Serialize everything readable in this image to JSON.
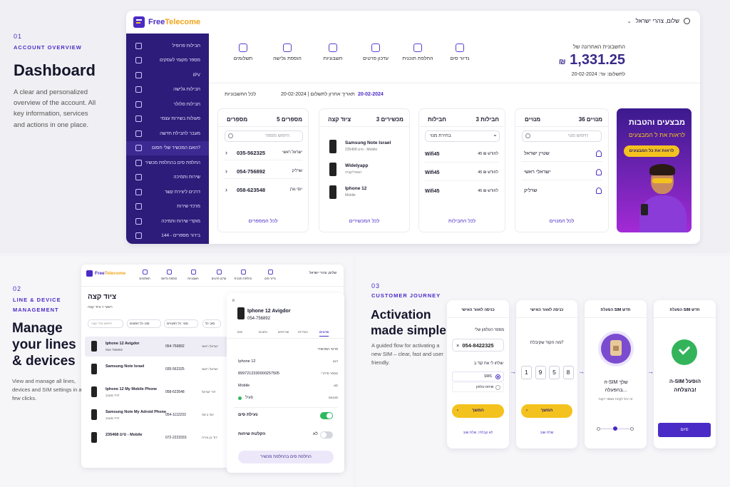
{
  "s1": {
    "num": "01",
    "label": "ACCOUNT OVERVIEW",
    "title": "Dashboard",
    "desc": "A clear and personalized overview of the account. All key information, services and actions in one place."
  },
  "s2": {
    "num": "02",
    "label": "LINE & DEVICE MANAGEMENT",
    "title": "Manage your lines & devices",
    "desc": "View and manage all lines, devices and SIM settings in a few clicks."
  },
  "s3": {
    "num": "03",
    "label": "CUSTOMER JOURNEY",
    "title": "Activation made simple",
    "desc": "A guided flow for activating a new SIM – clear, fast and user friendly."
  },
  "app": {
    "logo_free": "Free",
    "logo_tel": "Telecome",
    "greeting": "שלום, צהרי ישראל"
  },
  "sidebar": [
    "חבילות פרופיל",
    "מספר מקומי לעסקים",
    "IPV",
    "חבילות גלישה",
    "חבילות סלולר",
    "פעולות בשירות עצמי",
    "מעבר לחבילת חדשה",
    "האם המכשיר שלי חסום?",
    "החלפת סים בהחלפת מכשיר",
    "שירות ותמיכה",
    "דרכים ליצירת קשר",
    "מרכזי שירות",
    "מוקדי שירות ותמיכה",
    "144 - בירור מספרים"
  ],
  "toolbar": [
    "נדיור סים",
    "החלפת תוכנית",
    "עדכון פרטים",
    "חשבוניות",
    "הוספת גלישה",
    "תשלומים"
  ],
  "bill": {
    "title": "החשבונית האחרונה של",
    "amount": "1,331.25",
    "currency": "₪",
    "due": "לתשלום: עד: 20-02-2024",
    "date": "20-02-2024",
    "last_date": "תאריך אחרון לתשלום | 20-02-2024",
    "all": "לכל החשבוניות"
  },
  "promo": {
    "title": "מבצעים והטבות",
    "sub": "לראות את ל המבצעים",
    "cta": "לראות את כל המבצעים"
  },
  "subs": {
    "count": "36 מנויים",
    "label": "מנויים",
    "search": "חיפוש מנוי",
    "items": [
      "שטיין ישראל",
      "ישראלי ראשי",
      "שרליק"
    ],
    "all": "לכל המנויים"
  },
  "packs": {
    "count": "3 חבילות",
    "label": "חבילות",
    "select": "בחירת מנוי",
    "items": [
      {
        "name": "Wifi45",
        "price": "45 ₪ לחודש"
      },
      {
        "name": "Wifi45",
        "price": "45 ₪ לחודש"
      },
      {
        "name": "Wifi45",
        "price": "45 ₪ לחודש"
      }
    ],
    "all": "לכל החבילות"
  },
  "devices": {
    "count": "3 מכשירים",
    "label": "ציוד קצה",
    "items": [
      {
        "name": "Samsung Note Israel",
        "sub": "סים 235468 - Mobile"
      },
      {
        "name": "Widelyapp",
        "sub": "האפליקציה"
      },
      {
        "name": "Iphone 12",
        "sub": "Mobile"
      }
    ],
    "all": "לכל המכשירים"
  },
  "numbers": {
    "count": "5 מספרים",
    "label": "מספרים",
    "search": "חיפוש מספר",
    "items": [
      {
        "num": "035-562325",
        "owner": "ישראל ראשי"
      },
      {
        "num": "054-756892",
        "owner": "שרליק"
      },
      {
        "num": "058-623548",
        "owner": "יוסי גורן"
      }
    ],
    "all": "לכל המספרים"
  },
  "mini": {
    "logo_free": "Free",
    "logo_tel": "Telecome",
    "greeting": "שלום, צהרי ישראל",
    "toolbar": [
      "נדיור סים",
      "החלפת תוכנית",
      "עדכון פרטים",
      "חשבוניות",
      "הוספת גלישה",
      "תשלומים"
    ],
    "title": "ציוד קצה",
    "crumb": "ראשי > ציוד קצה",
    "filters": [
      "סוג: כל",
      "מנוי: כל המנויים",
      "סוג: כל הסוגים"
    ],
    "search": "חיפוש ציוד קצה",
    "rows": [
      {
        "name": "Iphone 12 Avigdor",
        "sub": "054-756892",
        "num": "054-756892",
        "owner": "ישראל ראשי"
      },
      {
        "name": "Samsung Note Israel",
        "sub": "",
        "num": "035-562325",
        "owner": "ישראל ראשי"
      },
      {
        "name": "Iphone 12 My Mobile Phone",
        "sub": "דויד מעכב",
        "num": "058-623548",
        "owner": "דוד ישראל"
      },
      {
        "name": "Samsung Note My Adroid Phone",
        "sub": "דויד מעכב",
        "num": "054-1112233",
        "owner": "יוסי ביוסי"
      },
      {
        "name": "סים 235468 - Mobile",
        "sub": "",
        "num": "072-2223333",
        "owner": "דוד בן אריה"
      }
    ]
  },
  "detail": {
    "name": "Iphone 12 Avigdor",
    "phone": "054-756892",
    "tabs": [
      "פרטים",
      "הגדרות",
      "שירותים",
      "נתונים",
      "סים"
    ],
    "section": "פרטי המכשיר",
    "fields": [
      {
        "k": "דגם",
        "v": "Iphone 12"
      },
      {
        "k": "מספר סידורי",
        "v": "8997212330000257505"
      },
      {
        "k": "סוג",
        "v": "Mobile"
      },
      {
        "k": "סטטוס",
        "v": "פעיל"
      }
    ],
    "lock": "נעילת סים",
    "record": "הקלטת שיחות",
    "record_val": "לא",
    "action": "החלפת סים בהחלפת מכשיר"
  },
  "flow1": {
    "title": "כניסה לאזור האישי",
    "label": "מספר הטלפון שלי",
    "phone": "054-8422325",
    "question": "שלחו לי את קוד ב:",
    "opt1": "SMS",
    "opt2": "שיחת טלפון",
    "btn": "המשך",
    "link": "לא קבלתי, שלח שוב"
  },
  "flow2": {
    "title": "כניסה לאזור האישי",
    "question": "מה הקוד שקיבלת?",
    "digits": [
      "1",
      "9",
      "5",
      "8"
    ],
    "btn": "המשך",
    "link": "שלח שוב"
  },
  "flow3": {
    "title": "הפעלת SIM חדש",
    "text": "ה-SIM שלך בהפעלה...",
    "sub": "זה יכול לקחת מספר דקות"
  },
  "flow4": {
    "title": "הפעלת SIM חדש",
    "text": "ה-SIM הופעל בהצלחה!",
    "btn": "סיום"
  }
}
